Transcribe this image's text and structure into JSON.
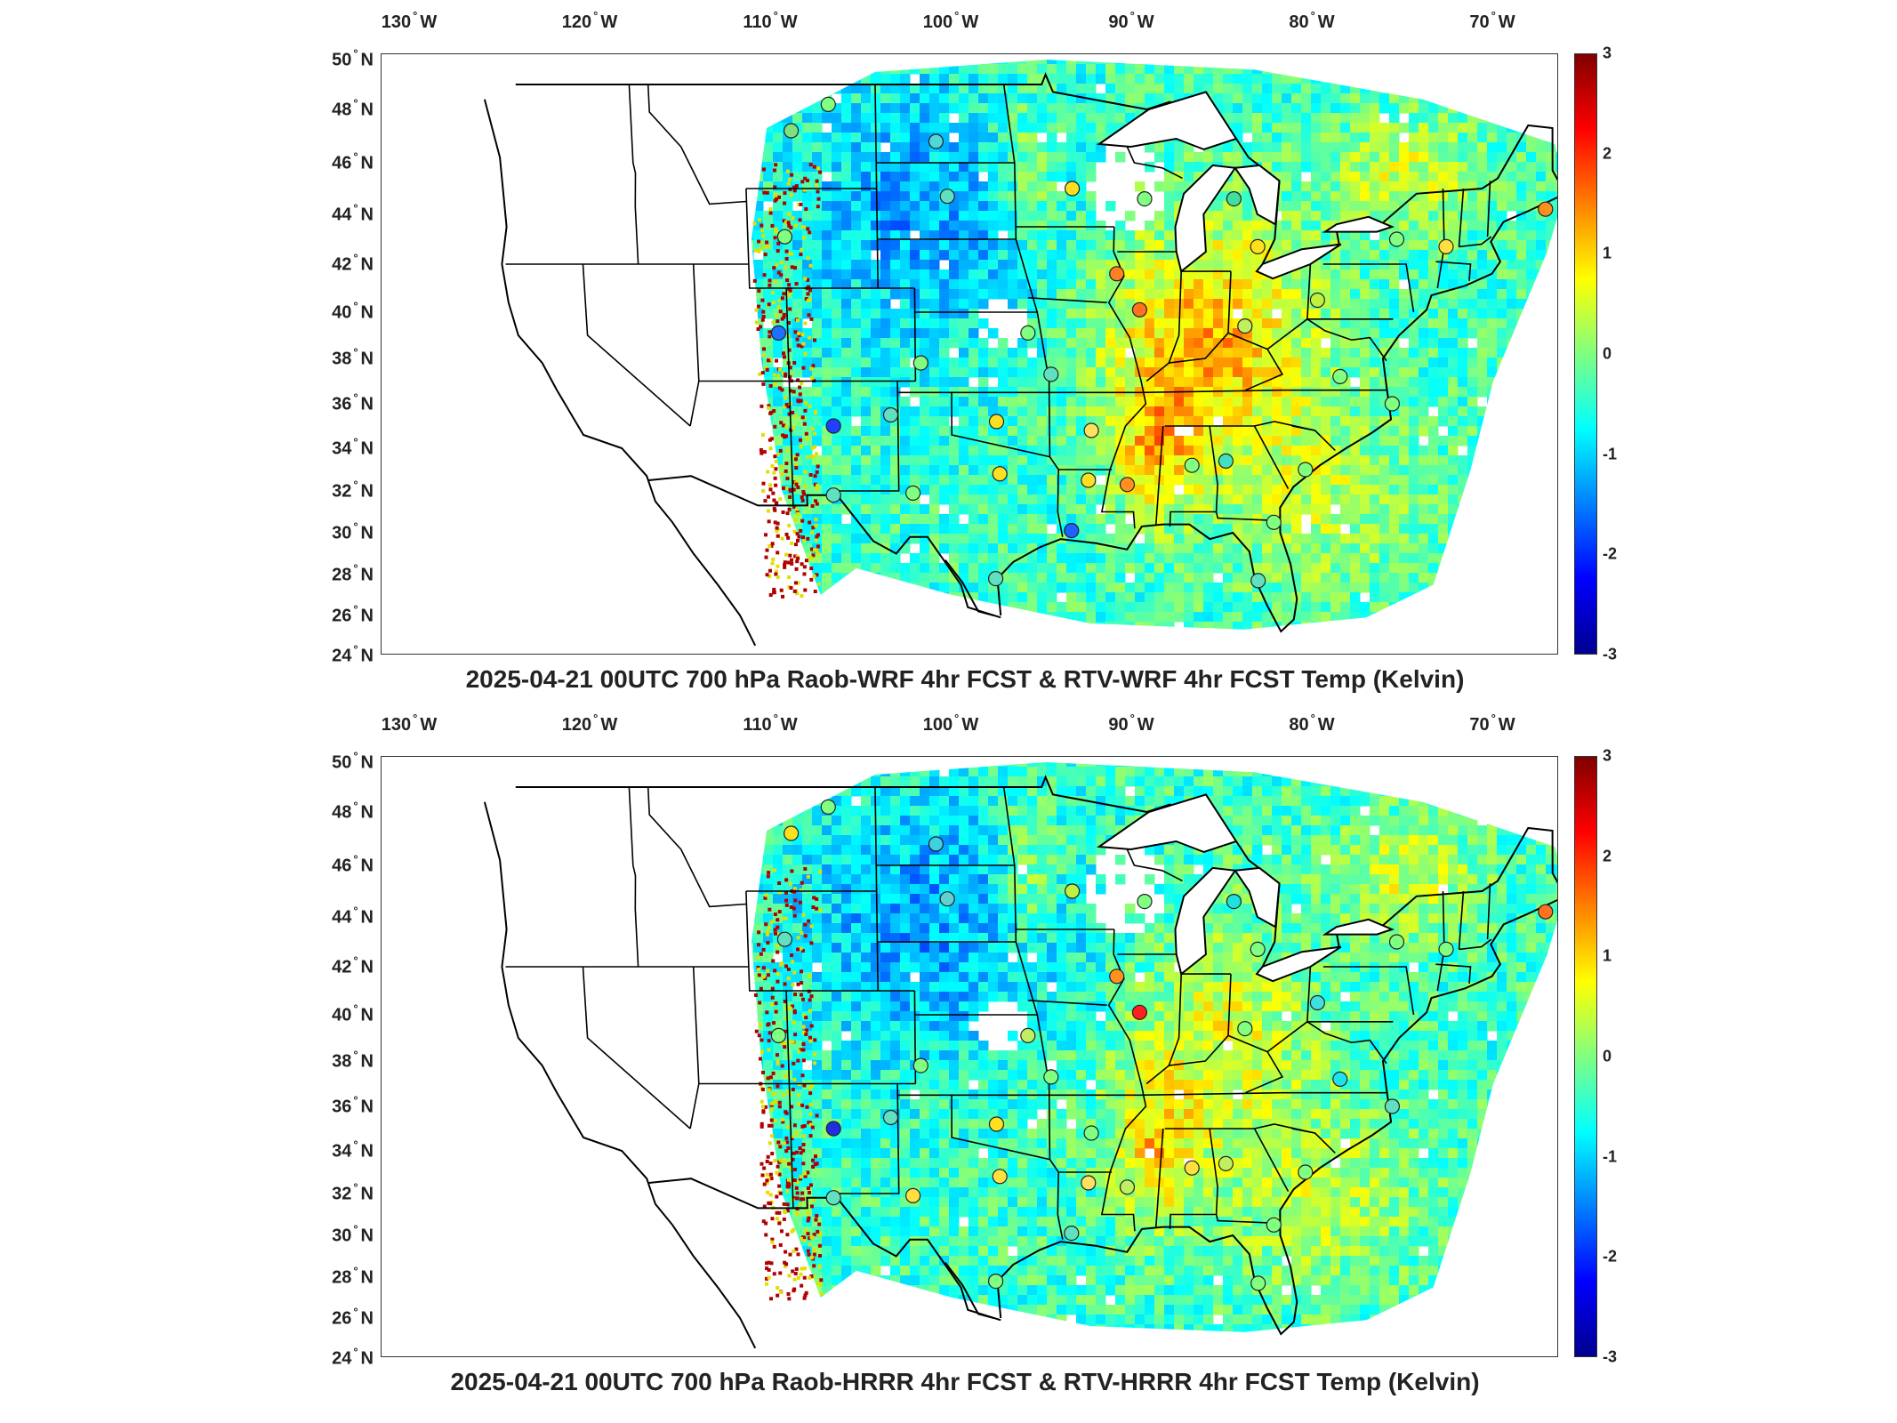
{
  "panels": [
    {
      "title": "2025-04-21 00UTC 700 hPa Raob-WRF 4hr FCST & RTV-WRF 4hr FCST Temp (Kelvin)",
      "stations": [
        {
          "lon": -108.5,
          "lat": 47.2,
          "color": "#7fe07f"
        },
        {
          "lon": -106.5,
          "lat": 48.2,
          "color": "#80ff80"
        },
        {
          "lon": -100.8,
          "lat": 46.8,
          "color": "#4fd8d8"
        },
        {
          "lon": -100.2,
          "lat": 44.7,
          "color": "#60e0c0"
        },
        {
          "lon": -93.5,
          "lat": 45.0,
          "color": "#ffe020"
        },
        {
          "lon": -89.6,
          "lat": 44.6,
          "color": "#80ff80"
        },
        {
          "lon": -84.8,
          "lat": 44.6,
          "color": "#40e0a0"
        },
        {
          "lon": -75.9,
          "lat": 43.0,
          "color": "#80ff80"
        },
        {
          "lon": -68.0,
          "lat": 44.2,
          "color": "#ff9020"
        },
        {
          "lon": -73.2,
          "lat": 42.7,
          "color": "#ffe040"
        },
        {
          "lon": -83.4,
          "lat": 42.7,
          "color": "#ffe020"
        },
        {
          "lon": -91.0,
          "lat": 41.6,
          "color": "#ff8020"
        },
        {
          "lon": -89.7,
          "lat": 40.1,
          "color": "#ff7020"
        },
        {
          "lon": -80.0,
          "lat": 40.5,
          "color": "#c0f040"
        },
        {
          "lon": -83.9,
          "lat": 39.4,
          "color": "#c0f060"
        },
        {
          "lon": -95.8,
          "lat": 39.1,
          "color": "#80ff80"
        },
        {
          "lon": -101.7,
          "lat": 37.8,
          "color": "#80ff80"
        },
        {
          "lon": -94.5,
          "lat": 37.3,
          "color": "#60e0c0"
        },
        {
          "lon": -78.5,
          "lat": 37.2,
          "color": "#80ff80"
        },
        {
          "lon": -75.5,
          "lat": 36.0,
          "color": "#80ff80"
        },
        {
          "lon": -103.4,
          "lat": 35.5,
          "color": "#60e0c0"
        },
        {
          "lon": -97.5,
          "lat": 35.2,
          "color": "#ffe020"
        },
        {
          "lon": -92.2,
          "lat": 34.8,
          "color": "#ffe060"
        },
        {
          "lon": -106.6,
          "lat": 35.0,
          "color": "#2040ff"
        },
        {
          "lon": -86.5,
          "lat": 33.2,
          "color": "#80ff80"
        },
        {
          "lon": -84.6,
          "lat": 33.4,
          "color": "#40e0c0"
        },
        {
          "lon": -80.1,
          "lat": 33.0,
          "color": "#80ff80"
        },
        {
          "lon": -97.3,
          "lat": 32.8,
          "color": "#ffe020"
        },
        {
          "lon": -92.3,
          "lat": 32.5,
          "color": "#ffe020"
        },
        {
          "lon": -90.1,
          "lat": 32.3,
          "color": "#ff9020"
        },
        {
          "lon": -102.2,
          "lat": 31.9,
          "color": "#80ff80"
        },
        {
          "lon": -106.7,
          "lat": 31.8,
          "color": "#60e0c0"
        },
        {
          "lon": -93.2,
          "lat": 30.1,
          "color": "#2060ff"
        },
        {
          "lon": -81.7,
          "lat": 30.5,
          "color": "#80ff80"
        },
        {
          "lon": -97.5,
          "lat": 27.8,
          "color": "#60e0c0"
        },
        {
          "lon": -82.4,
          "lat": 27.7,
          "color": "#60e0c0"
        },
        {
          "lon": -109.0,
          "lat": 43.1,
          "color": "#80ff80"
        },
        {
          "lon": -109.5,
          "lat": 39.1,
          "color": "#2070ff"
        }
      ]
    },
    {
      "title": "2025-04-21 00UTC 700 hPa Raob-HRRR 4hr FCST & RTV-HRRR 4hr FCST Temp (Kelvin)",
      "stations": [
        {
          "lon": -108.5,
          "lat": 47.2,
          "color": "#ffe020"
        },
        {
          "lon": -106.5,
          "lat": 48.2,
          "color": "#80ff80"
        },
        {
          "lon": -100.8,
          "lat": 46.8,
          "color": "#40d0e0"
        },
        {
          "lon": -100.2,
          "lat": 44.7,
          "color": "#60d0d0"
        },
        {
          "lon": -93.5,
          "lat": 45.0,
          "color": "#c0f040"
        },
        {
          "lon": -89.6,
          "lat": 44.6,
          "color": "#80ff80"
        },
        {
          "lon": -84.8,
          "lat": 44.6,
          "color": "#20e0e0"
        },
        {
          "lon": -75.9,
          "lat": 43.0,
          "color": "#80ff80"
        },
        {
          "lon": -68.0,
          "lat": 44.2,
          "color": "#ff7020"
        },
        {
          "lon": -73.2,
          "lat": 42.7,
          "color": "#80ff80"
        },
        {
          "lon": -83.4,
          "lat": 42.7,
          "color": "#80ff80"
        },
        {
          "lon": -91.0,
          "lat": 41.6,
          "color": "#ff9020"
        },
        {
          "lon": -89.7,
          "lat": 40.1,
          "color": "#ff2020"
        },
        {
          "lon": -80.0,
          "lat": 40.5,
          "color": "#40e0e0"
        },
        {
          "lon": -83.9,
          "lat": 39.4,
          "color": "#80ff80"
        },
        {
          "lon": -95.8,
          "lat": 39.1,
          "color": "#c0f060"
        },
        {
          "lon": -101.7,
          "lat": 37.8,
          "color": "#80ff80"
        },
        {
          "lon": -94.5,
          "lat": 37.3,
          "color": "#80ff80"
        },
        {
          "lon": -78.5,
          "lat": 37.2,
          "color": "#20e0f0"
        },
        {
          "lon": -75.5,
          "lat": 36.0,
          "color": "#60e0c0"
        },
        {
          "lon": -103.4,
          "lat": 35.5,
          "color": "#60e0c0"
        },
        {
          "lon": -97.5,
          "lat": 35.2,
          "color": "#ffe020"
        },
        {
          "lon": -92.2,
          "lat": 34.8,
          "color": "#80ff80"
        },
        {
          "lon": -106.6,
          "lat": 35.0,
          "color": "#2030e0"
        },
        {
          "lon": -86.5,
          "lat": 33.2,
          "color": "#ffe040"
        },
        {
          "lon": -84.6,
          "lat": 33.4,
          "color": "#c0f060"
        },
        {
          "lon": -80.1,
          "lat": 33.0,
          "color": "#80ff80"
        },
        {
          "lon": -97.3,
          "lat": 32.8,
          "color": "#ffe040"
        },
        {
          "lon": -92.3,
          "lat": 32.5,
          "color": "#ffe060"
        },
        {
          "lon": -90.1,
          "lat": 32.3,
          "color": "#c0f060"
        },
        {
          "lon": -102.2,
          "lat": 31.9,
          "color": "#ffe040"
        },
        {
          "lon": -106.7,
          "lat": 31.8,
          "color": "#60e0c0"
        },
        {
          "lon": -93.2,
          "lat": 30.1,
          "color": "#60e0c0"
        },
        {
          "lon": -81.7,
          "lat": 30.5,
          "color": "#80ff80"
        },
        {
          "lon": -97.5,
          "lat": 27.8,
          "color": "#80ff80"
        },
        {
          "lon": -82.4,
          "lat": 27.7,
          "color": "#80ff80"
        },
        {
          "lon": -109.0,
          "lat": 43.1,
          "color": "#60e0c0"
        },
        {
          "lon": -109.5,
          "lat": 39.1,
          "color": "#80ff80"
        }
      ]
    }
  ],
  "lon_ticks": [
    {
      "text": "130",
      "suffix": "W",
      "value": -130
    },
    {
      "text": "120",
      "suffix": "W",
      "value": -120
    },
    {
      "text": "110",
      "suffix": "W",
      "value": -110
    },
    {
      "text": "100",
      "suffix": "W",
      "value": -100
    },
    {
      "text": "90",
      "suffix": "W",
      "value": -90
    },
    {
      "text": "80",
      "suffix": "W",
      "value": -80
    },
    {
      "text": "70",
      "suffix": "W",
      "value": -70
    }
  ],
  "lat_ticks": [
    {
      "text": "50",
      "suffix": "N",
      "value": 50
    },
    {
      "text": "48",
      "suffix": "N",
      "value": 48
    },
    {
      "text": "46",
      "suffix": "N",
      "value": 46
    },
    {
      "text": "44",
      "suffix": "N",
      "value": 44
    },
    {
      "text": "42",
      "suffix": "N",
      "value": 42
    },
    {
      "text": "40",
      "suffix": "N",
      "value": 40
    },
    {
      "text": "38",
      "suffix": "N",
      "value": 38
    },
    {
      "text": "36",
      "suffix": "N",
      "value": 36
    },
    {
      "text": "34",
      "suffix": "N",
      "value": 34
    },
    {
      "text": "32",
      "suffix": "N",
      "value": 32
    },
    {
      "text": "30",
      "suffix": "N",
      "value": 30
    },
    {
      "text": "28",
      "suffix": "N",
      "value": 28
    },
    {
      "text": "26",
      "suffix": "N",
      "value": 26
    },
    {
      "text": "24",
      "suffix": "N",
      "value": 24
    }
  ],
  "colorbar": {
    "min": -3,
    "max": 3,
    "ticks": [
      "3",
      "2",
      "1",
      "0",
      "-1",
      "-2",
      "-3"
    ],
    "tick_values": [
      3,
      2,
      1,
      0,
      -1,
      -2,
      -3
    ],
    "colormap": "jet"
  },
  "colors": {
    "land_outline": "#000000",
    "background": "#ffffff",
    "frame": "#333333"
  }
}
